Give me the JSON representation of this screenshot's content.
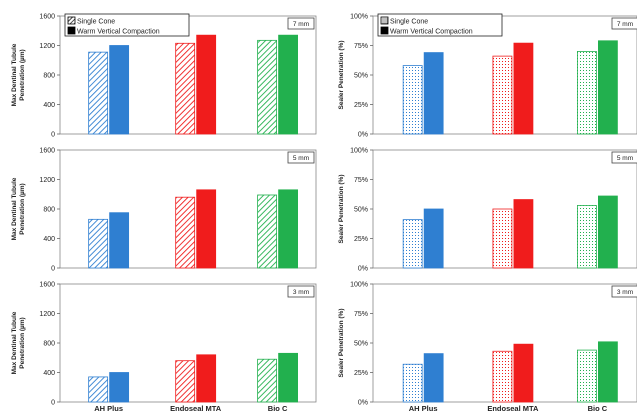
{
  "chart_data": [
    {
      "type": "bar",
      "categories": [
        "AH Plus",
        "Endoseal MTA",
        "Bio C"
      ],
      "series": [
        {
          "name": "Single Cone",
          "values": [
            1110,
            1230,
            1270
          ]
        },
        {
          "name": "Warm Vertical Compaction",
          "values": [
            1200,
            1340,
            1340
          ]
        }
      ],
      "ylabel": "Max Dentinal Tubule Penetration (µm)",
      "yticks": [
        "0",
        "400",
        "800",
        "1200",
        "1600"
      ],
      "ylim": [
        0,
        1600
      ],
      "annotation": "7 mm",
      "legend": "top-left"
    },
    {
      "type": "bar",
      "categories": [
        "AH Plus",
        "Endoseal MTA",
        "Bio C"
      ],
      "series": [
        {
          "name": "Single Cone",
          "values": [
            58,
            66,
            70
          ]
        },
        {
          "name": "Warm Vertical Compaction",
          "values": [
            69,
            77,
            79
          ]
        }
      ],
      "ylabel": "Sealer Penetration (%)",
      "yticks": [
        "0%",
        "25%",
        "50%",
        "75%",
        "100%"
      ],
      "ylim": [
        0,
        100
      ],
      "annotation": "7 mm",
      "legend": "top-left"
    },
    {
      "type": "bar",
      "categories": [
        "AH Plus",
        "Endoseal MTA",
        "Bio C"
      ],
      "series": [
        {
          "name": "Single Cone",
          "values": [
            660,
            960,
            990
          ]
        },
        {
          "name": "Warm Vertical Compaction",
          "values": [
            750,
            1060,
            1060
          ]
        }
      ],
      "ylabel": "Max Dentinal Tubule Penetration (µm)",
      "yticks": [
        "0",
        "400",
        "800",
        "1200",
        "1600"
      ],
      "ylim": [
        0,
        1600
      ],
      "annotation": "5 mm"
    },
    {
      "type": "bar",
      "categories": [
        "AH Plus",
        "Endoseal MTA",
        "Bio C"
      ],
      "series": [
        {
          "name": "Single Cone",
          "values": [
            41,
            50,
            53
          ]
        },
        {
          "name": "Warm Vertical Compaction",
          "values": [
            50,
            58,
            61
          ]
        }
      ],
      "ylabel": "Sealer Penetration (%)",
      "yticks": [
        "0%",
        "25%",
        "50%",
        "75%",
        "100%"
      ],
      "ylim": [
        0,
        100
      ],
      "annotation": "5 mm"
    },
    {
      "type": "bar",
      "categories": [
        "AH Plus",
        "Endoseal MTA",
        "Bio C"
      ],
      "series": [
        {
          "name": "Single Cone",
          "values": [
            340,
            560,
            580
          ]
        },
        {
          "name": "Warm Vertical Compaction",
          "values": [
            400,
            640,
            660
          ]
        }
      ],
      "ylabel": "Max Dentinal Tubule Penetration (µm)",
      "yticks": [
        "0",
        "400",
        "800",
        "1200",
        "1600"
      ],
      "ylim": [
        0,
        1600
      ],
      "annotation": "3 mm"
    },
    {
      "type": "bar",
      "categories": [
        "AH Plus",
        "Endoseal MTA",
        "Bio C"
      ],
      "series": [
        {
          "name": "Single Cone",
          "values": [
            32,
            43,
            44
          ]
        },
        {
          "name": "Warm Vertical Compaction",
          "values": [
            41,
            49,
            51
          ]
        }
      ],
      "ylabel": "Sealer Penetration (%)",
      "yticks": [
        "0%",
        "25%",
        "50%",
        "75%",
        "100%"
      ],
      "ylim": [
        0,
        100
      ],
      "annotation": "3 mm"
    }
  ],
  "colors": {
    "AH Plus": "#2f7fd1",
    "Endoseal MTA": "#f01c1c",
    "Bio C": "#22b04e"
  }
}
